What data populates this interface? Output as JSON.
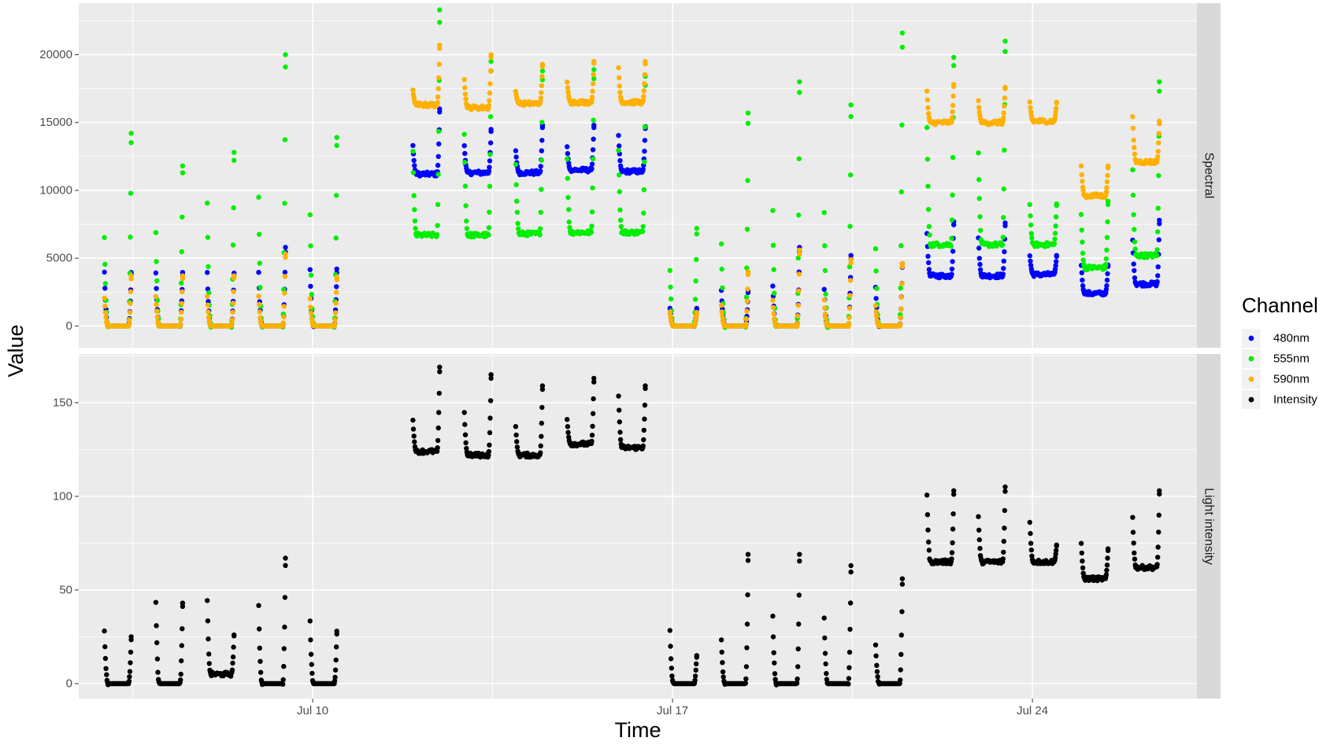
{
  "chart_data": {
    "type": "scatter",
    "xlabel": "Time",
    "ylabel": "Value",
    "x_ticks": [
      "Jul 10",
      "Jul 17",
      "Jul 24"
    ],
    "x_tick_days": [
      10,
      17,
      24
    ],
    "xlim_days": [
      5.45,
      27.2
    ],
    "grid": true,
    "legend": {
      "title": "Channel",
      "position": "right",
      "entries": [
        {
          "label": "480nm",
          "color": "#0000ff"
        },
        {
          "label": "555nm",
          "color": "#00ee00"
        },
        {
          "label": "590nm",
          "color": "#ffb000"
        },
        {
          "label": "Intensity",
          "color": "#000000"
        }
      ]
    },
    "panels": [
      {
        "strip": "Spectral",
        "ylim": [
          -1600,
          23800
        ],
        "y_ticks": [
          0,
          5000,
          10000,
          15000,
          20000
        ],
        "y_tick_labels": [
          "0",
          "5000",
          "10000",
          "15000",
          "20000"
        ],
        "series": [
          {
            "name": "480nm",
            "color": "#0000ff",
            "days": [
              {
                "day": 6,
                "floor": 0,
                "peak": 3950,
                "spike": 3950
              },
              {
                "day": 7,
                "floor": 0,
                "peak": 3950,
                "spike": 3950
              },
              {
                "day": 8,
                "floor": 0,
                "peak": 3900,
                "spike": 3900
              },
              {
                "day": 9,
                "floor": 0,
                "peak": 3900,
                "spike": 5800
              },
              {
                "day": 10,
                "floor": 0,
                "peak": 4200,
                "spike": 4200
              },
              {
                "day": 12,
                "floor": 11200,
                "peak": 13300,
                "spike": 16000
              },
              {
                "day": 13,
                "floor": 11300,
                "peak": 13300,
                "spike": 14500
              },
              {
                "day": 14,
                "floor": 11300,
                "peak": 12900,
                "spike": 14800
              },
              {
                "day": 15,
                "floor": 11500,
                "peak": 13200,
                "spike": 14800
              },
              {
                "day": 16,
                "floor": 11400,
                "peak": 14000,
                "spike": 14700
              },
              {
                "day": 17,
                "floor": 0,
                "peak": 1300,
                "spike": 1300
              },
              {
                "day": 18,
                "floor": 0,
                "peak": 2600,
                "spike": 2600
              },
              {
                "day": 19,
                "floor": 0,
                "peak": 3000,
                "spike": 5800
              },
              {
                "day": 20,
                "floor": 0,
                "peak": 2700,
                "spike": 5200
              },
              {
                "day": 21,
                "floor": 0,
                "peak": 2800,
                "spike": 4600
              },
              {
                "day": 22,
                "floor": 3700,
                "peak": 6800,
                "spike": 7700
              },
              {
                "day": 23,
                "floor": 3700,
                "peak": 6500,
                "spike": 7600
              },
              {
                "day": 24,
                "floor": 3800,
                "peak": 5200,
                "spike": 5200
              },
              {
                "day": 25,
                "floor": 2400,
                "peak": 4500,
                "spike": 4500
              },
              {
                "day": 26,
                "floor": 3100,
                "peak": 6300,
                "spike": 7800
              }
            ]
          },
          {
            "name": "555nm",
            "color": "#00ee00",
            "days": [
              {
                "day": 6,
                "floor": 0,
                "peak": 6500,
                "spike": 14200
              },
              {
                "day": 7,
                "floor": 0,
                "peak": 6800,
                "spike": 11800
              },
              {
                "day": 8,
                "floor": 0,
                "peak": 9000,
                "spike": 12800
              },
              {
                "day": 9,
                "floor": 0,
                "peak": 9600,
                "spike": 20000
              },
              {
                "day": 10,
                "floor": 0,
                "peak": 8200,
                "spike": 13900
              },
              {
                "day": 12,
                "floor": 6700,
                "peak": 13000,
                "spike": 23300
              },
              {
                "day": 13,
                "floor": 6700,
                "peak": 14200,
                "spike": 19500
              },
              {
                "day": 14,
                "floor": 6800,
                "peak": 12000,
                "spike": 18800
              },
              {
                "day": 15,
                "floor": 6900,
                "peak": 12400,
                "spike": 18900
              },
              {
                "day": 16,
                "floor": 6900,
                "peak": 13000,
                "spike": 18400
              },
              {
                "day": 17,
                "floor": 0,
                "peak": 4100,
                "spike": 7200
              },
              {
                "day": 18,
                "floor": 0,
                "peak": 6000,
                "spike": 15700
              },
              {
                "day": 19,
                "floor": 0,
                "peak": 8400,
                "spike": 18000
              },
              {
                "day": 20,
                "floor": 0,
                "peak": 8400,
                "spike": 16300
              },
              {
                "day": 21,
                "floor": 0,
                "peak": 5600,
                "spike": 21600
              },
              {
                "day": 22,
                "floor": 6000,
                "peak": 14800,
                "spike": 19800
              },
              {
                "day": 23,
                "floor": 6000,
                "peak": 12900,
                "spike": 21000
              },
              {
                "day": 24,
                "floor": 6000,
                "peak": 9000,
                "spike": 9000
              },
              {
                "day": 25,
                "floor": 4300,
                "peak": 8200,
                "spike": 9200
              },
              {
                "day": 26,
                "floor": 5200,
                "peak": 11500,
                "spike": 18000
              }
            ]
          },
          {
            "name": "590nm",
            "color": "#ffb000",
            "days": [
              {
                "day": 6,
                "floor": 0,
                "peak": 2100,
                "spike": 3700
              },
              {
                "day": 7,
                "floor": 0,
                "peak": 2200,
                "spike": 3700
              },
              {
                "day": 8,
                "floor": 0,
                "peak": 2200,
                "spike": 3700
              },
              {
                "day": 9,
                "floor": 0,
                "peak": 2200,
                "spike": 5300
              },
              {
                "day": 10,
                "floor": 0,
                "peak": 2000,
                "spike": 3600
              },
              {
                "day": 12,
                "floor": 16300,
                "peak": 17400,
                "spike": 20700
              },
              {
                "day": 13,
                "floor": 16100,
                "peak": 18200,
                "spike": 20000
              },
              {
                "day": 14,
                "floor": 16400,
                "peak": 17300,
                "spike": 19300
              },
              {
                "day": 15,
                "floor": 16500,
                "peak": 18000,
                "spike": 19500
              },
              {
                "day": 16,
                "floor": 16500,
                "peak": 19000,
                "spike": 19500
              },
              {
                "day": 17,
                "floor": 0,
                "peak": 1000,
                "spike": 1000
              },
              {
                "day": 18,
                "floor": 0,
                "peak": 1500,
                "spike": 4000
              },
              {
                "day": 19,
                "floor": 0,
                "peak": 1900,
                "spike": 5600
              },
              {
                "day": 20,
                "floor": 0,
                "peak": 1900,
                "spike": 4900
              },
              {
                "day": 21,
                "floor": 0,
                "peak": 1500,
                "spike": 4600
              },
              {
                "day": 22,
                "floor": 15000,
                "peak": 17300,
                "spike": 17800
              },
              {
                "day": 23,
                "floor": 15000,
                "peak": 16600,
                "spike": 17600
              },
              {
                "day": 24,
                "floor": 15100,
                "peak": 16500,
                "spike": 16500
              },
              {
                "day": 25,
                "floor": 9600,
                "peak": 11800,
                "spike": 11800
              },
              {
                "day": 26,
                "floor": 12100,
                "peak": 15500,
                "spike": 15100
              }
            ]
          }
        ]
      },
      {
        "strip": "Light intensity",
        "ylim": [
          -8,
          176
        ],
        "y_ticks": [
          0,
          50,
          100,
          150
        ],
        "y_tick_labels": [
          "0",
          "50",
          "100",
          "150"
        ],
        "series": [
          {
            "name": "Intensity",
            "color": "#000000",
            "days": [
              {
                "day": 6,
                "floor": 0,
                "peak": 28,
                "spike": 25
              },
              {
                "day": 7,
                "floor": 0,
                "peak": 44,
                "spike": 43
              },
              {
                "day": 8,
                "floor": 5,
                "peak": 44,
                "spike": 26
              },
              {
                "day": 9,
                "floor": 0,
                "peak": 41,
                "spike": 67
              },
              {
                "day": 10,
                "floor": 0,
                "peak": 33,
                "spike": 28
              },
              {
                "day": 12,
                "floor": 124,
                "peak": 141,
                "spike": 169
              },
              {
                "day": 13,
                "floor": 122,
                "peak": 145,
                "spike": 165
              },
              {
                "day": 14,
                "floor": 122,
                "peak": 137,
                "spike": 159
              },
              {
                "day": 15,
                "floor": 128,
                "peak": 141,
                "spike": 163
              },
              {
                "day": 16,
                "floor": 126,
                "peak": 154,
                "spike": 159
              },
              {
                "day": 17,
                "floor": 0,
                "peak": 28,
                "spike": 15
              },
              {
                "day": 18,
                "floor": 0,
                "peak": 23,
                "spike": 69
              },
              {
                "day": 19,
                "floor": 0,
                "peak": 36,
                "spike": 69
              },
              {
                "day": 20,
                "floor": 0,
                "peak": 35,
                "spike": 63
              },
              {
                "day": 21,
                "floor": 0,
                "peak": 21,
                "spike": 56
              },
              {
                "day": 22,
                "floor": 65,
                "peak": 101,
                "spike": 103
              },
              {
                "day": 23,
                "floor": 65,
                "peak": 89,
                "spike": 105
              },
              {
                "day": 24,
                "floor": 65,
                "peak": 86,
                "spike": 74
              },
              {
                "day": 25,
                "floor": 56,
                "peak": 75,
                "spike": 72
              },
              {
                "day": 26,
                "floor": 62,
                "peak": 89,
                "spike": 103
              }
            ]
          }
        ]
      }
    ]
  }
}
